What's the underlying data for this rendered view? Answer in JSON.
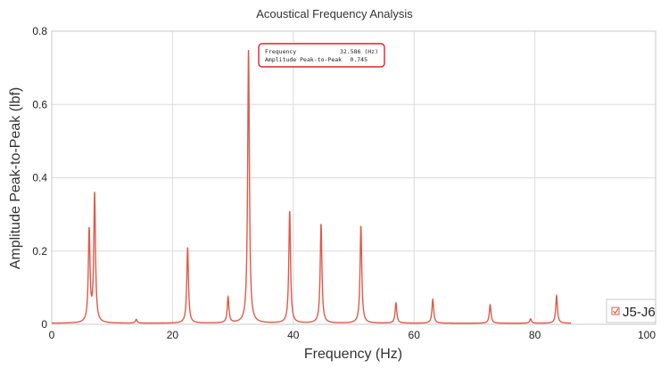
{
  "chart_data": {
    "type": "line",
    "title": "Acoustical Frequency Analysis",
    "xlabel": "Frequency (Hz)",
    "ylabel": "Amplitude Peak-to-Peak (lbf)",
    "xlim": [
      0,
      100
    ],
    "ylim": [
      0,
      0.8
    ],
    "x_ticks": [
      0,
      20,
      40,
      60,
      80,
      100
    ],
    "y_ticks": [
      0,
      0.2,
      0.4,
      0.6,
      0.8
    ],
    "x_tick_labels": [
      "0",
      "20",
      "40",
      "60",
      "80",
      "100"
    ],
    "y_tick_labels": [
      "0",
      "0.2",
      "0.4",
      "0.6",
      "0.8"
    ],
    "grid": true,
    "legend_position": "bottom-right",
    "series": [
      {
        "name": "J5-J6",
        "color": "#e05a4a",
        "baseline": 0.003,
        "x_max": 86,
        "peaks": [
          {
            "x": 6.2,
            "y": 0.25
          },
          {
            "x": 7.1,
            "y": 0.35
          },
          {
            "x": 14.0,
            "y": 0.01
          },
          {
            "x": 22.5,
            "y": 0.205
          },
          {
            "x": 29.2,
            "y": 0.07
          },
          {
            "x": 32.586,
            "y": 0.745
          },
          {
            "x": 39.4,
            "y": 0.305
          },
          {
            "x": 44.6,
            "y": 0.27
          },
          {
            "x": 51.2,
            "y": 0.265
          },
          {
            "x": 57.0,
            "y": 0.055
          },
          {
            "x": 63.1,
            "y": 0.065
          },
          {
            "x": 72.6,
            "y": 0.05
          },
          {
            "x": 79.3,
            "y": 0.012
          },
          {
            "x": 83.6,
            "y": 0.075
          }
        ]
      }
    ],
    "tooltip": {
      "line1_label": "Frequency",
      "line1_value": "32.586 (Hz)",
      "line2_label": "Amplitude Peak-to-Peak",
      "line2_value": "0.745",
      "border_color": "#e0202a"
    },
    "legend": {
      "label": "J5-J6",
      "checked": true,
      "check_color": "#e05a4a"
    }
  }
}
